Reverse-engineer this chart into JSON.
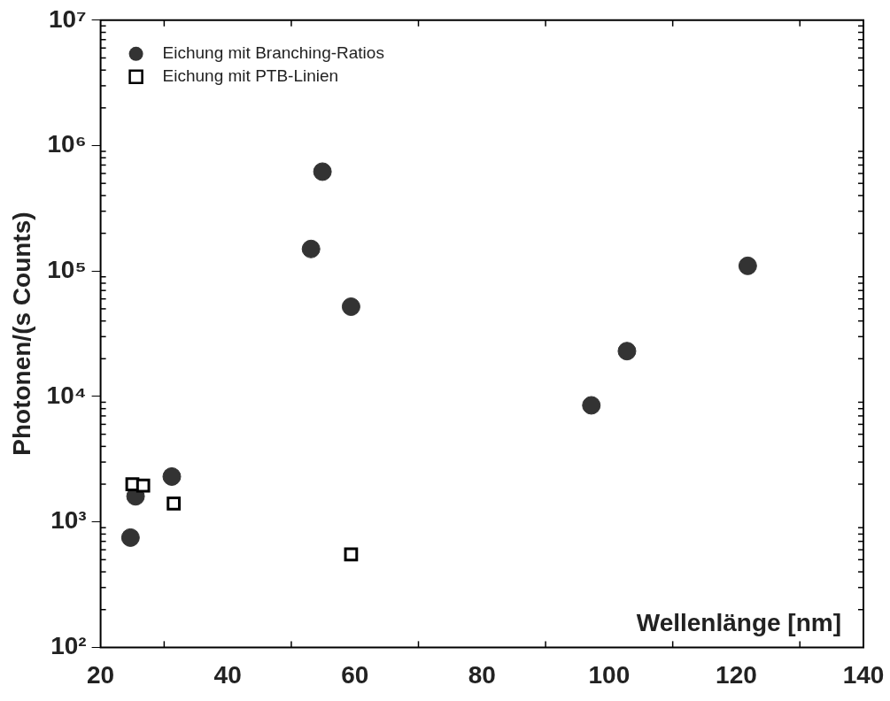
{
  "chart_data": {
    "type": "scatter",
    "xlabel": "Wellenlänge [nm]",
    "ylabel": "Photonen/(s Counts)",
    "log": "y",
    "grid": false,
    "legend": "top left",
    "xlim": [
      20,
      140
    ],
    "xticks": [
      20,
      40,
      60,
      80,
      100,
      120,
      140
    ],
    "ylim": [
      100,
      10000000
    ],
    "yticks": [
      {
        "value": 100,
        "label": "10²"
      },
      {
        "value": 1000,
        "label": "10³"
      },
      {
        "value": 10000,
        "label": "10⁴"
      },
      {
        "value": 100000,
        "label": "10⁵"
      },
      {
        "value": 1000000,
        "label": "10⁶"
      },
      {
        "value": 10000000,
        "label": "10⁷"
      }
    ],
    "series": [
      {
        "name": "Eichung mit Branching-Ratios",
        "color": "#333333",
        "marker": "circle",
        "x": [
          24.7,
          25.5,
          31.2,
          53.1,
          54.9,
          59.4,
          97.2,
          102.8,
          121.8
        ],
        "values": [
          750,
          1600,
          2300,
          150000,
          620000,
          52000,
          8500,
          23000,
          110000
        ]
      },
      {
        "name": "Eichung mit PTB-Linien",
        "color": "#000000",
        "marker": "square",
        "x": [
          25.0,
          26.7,
          31.5,
          59.4
        ],
        "values": [
          2000,
          1950,
          1400,
          550
        ]
      }
    ]
  }
}
